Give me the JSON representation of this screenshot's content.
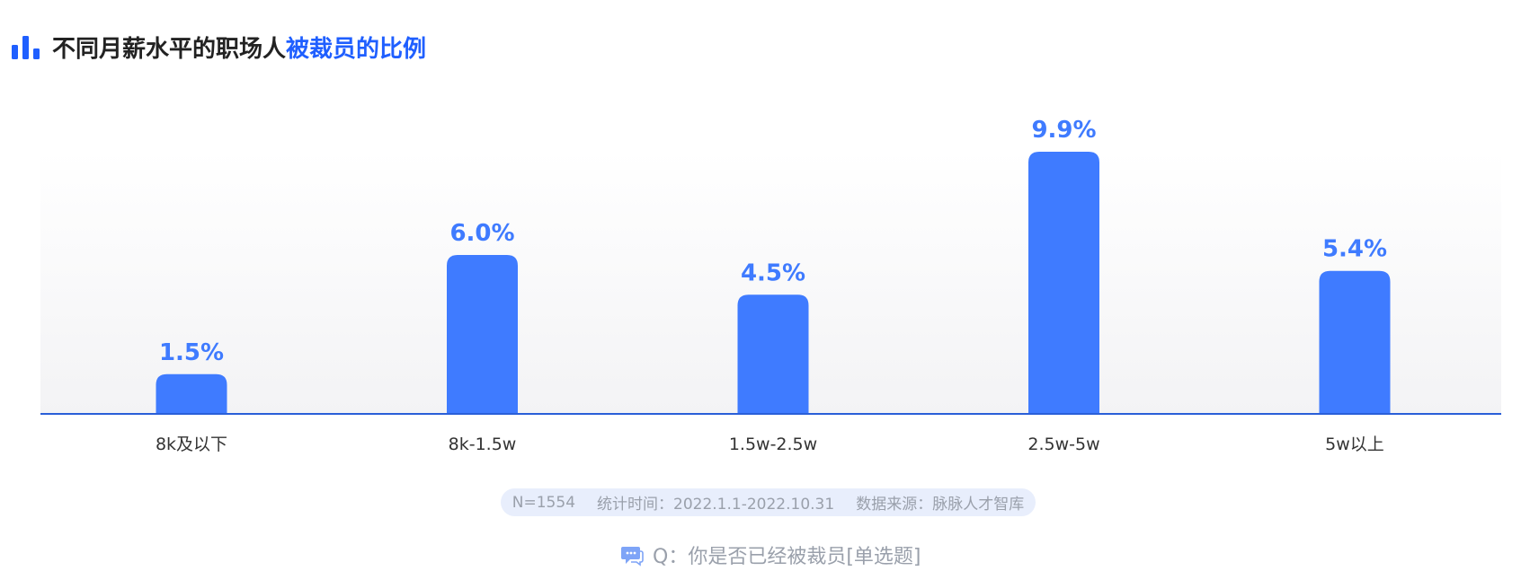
{
  "title": {
    "main": "不同月薪水平的职场人",
    "highlight": "被裁员的比例"
  },
  "icons": {
    "title": "bar-chart-icon",
    "question": "chat-bubble-icon"
  },
  "colors": {
    "bar": "#3f7bff",
    "value_label": "#3f7bff",
    "title_highlight": "#1f5fff",
    "axis": "#2a5fd8",
    "plot_bg_top": "#ffffff",
    "plot_bg_bottom": "#f3f3f5"
  },
  "chart_data": {
    "type": "bar",
    "categories": [
      "8k及以下",
      "8k-1.5w",
      "1.5w-2.5w",
      "2.5w-5w",
      "5w以上"
    ],
    "values": [
      1.5,
      6.0,
      4.5,
      9.9,
      5.4
    ],
    "value_labels": [
      "1.5%",
      "6.0%",
      "4.5%",
      "9.9%",
      "5.4%"
    ],
    "unit": "%",
    "ylim": [
      0,
      10
    ],
    "grid": false,
    "legend": "none"
  },
  "footer": {
    "sample": "N=1554",
    "period": "统计时间：2022.1.1-2022.10.31",
    "source": "数据来源：脉脉人才智库"
  },
  "question": {
    "text": "Q：你是否已经被裁员[单选题]"
  }
}
